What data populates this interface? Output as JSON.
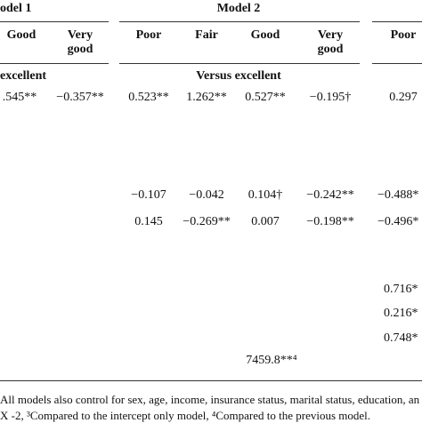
{
  "header": {
    "model1": "odel 1",
    "model2": "Model 2"
  },
  "subheaders": [
    "Good",
    "Very good",
    "Poor",
    "Fair",
    "Good",
    "Very good",
    "Poor"
  ],
  "section": {
    "left": "excellent",
    "center": "Versus excellent"
  },
  "rows": [
    [
      ".545**",
      "−0.357**",
      "0.523**",
      "1.262**",
      "0.527**",
      "−0.195†",
      "0.297"
    ],
    [
      "−0.107",
      "−0.042",
      "0.104†",
      "−0.242**",
      "−0.488*"
    ],
    [
      "0.145",
      "−0.269**",
      "0.007",
      "−0.198**",
      "−0.496*"
    ],
    [
      "0.716*"
    ],
    [
      "0.216*"
    ],
    [
      "0.748*"
    ],
    [
      "7459.8**⁴"
    ]
  ],
  "footnotes": [
    "All models also control for sex, age, income, insurance status, marital status, education, an",
    "X -2, ³Compared to the intercept only model, ⁴Compared to the previous model."
  ]
}
